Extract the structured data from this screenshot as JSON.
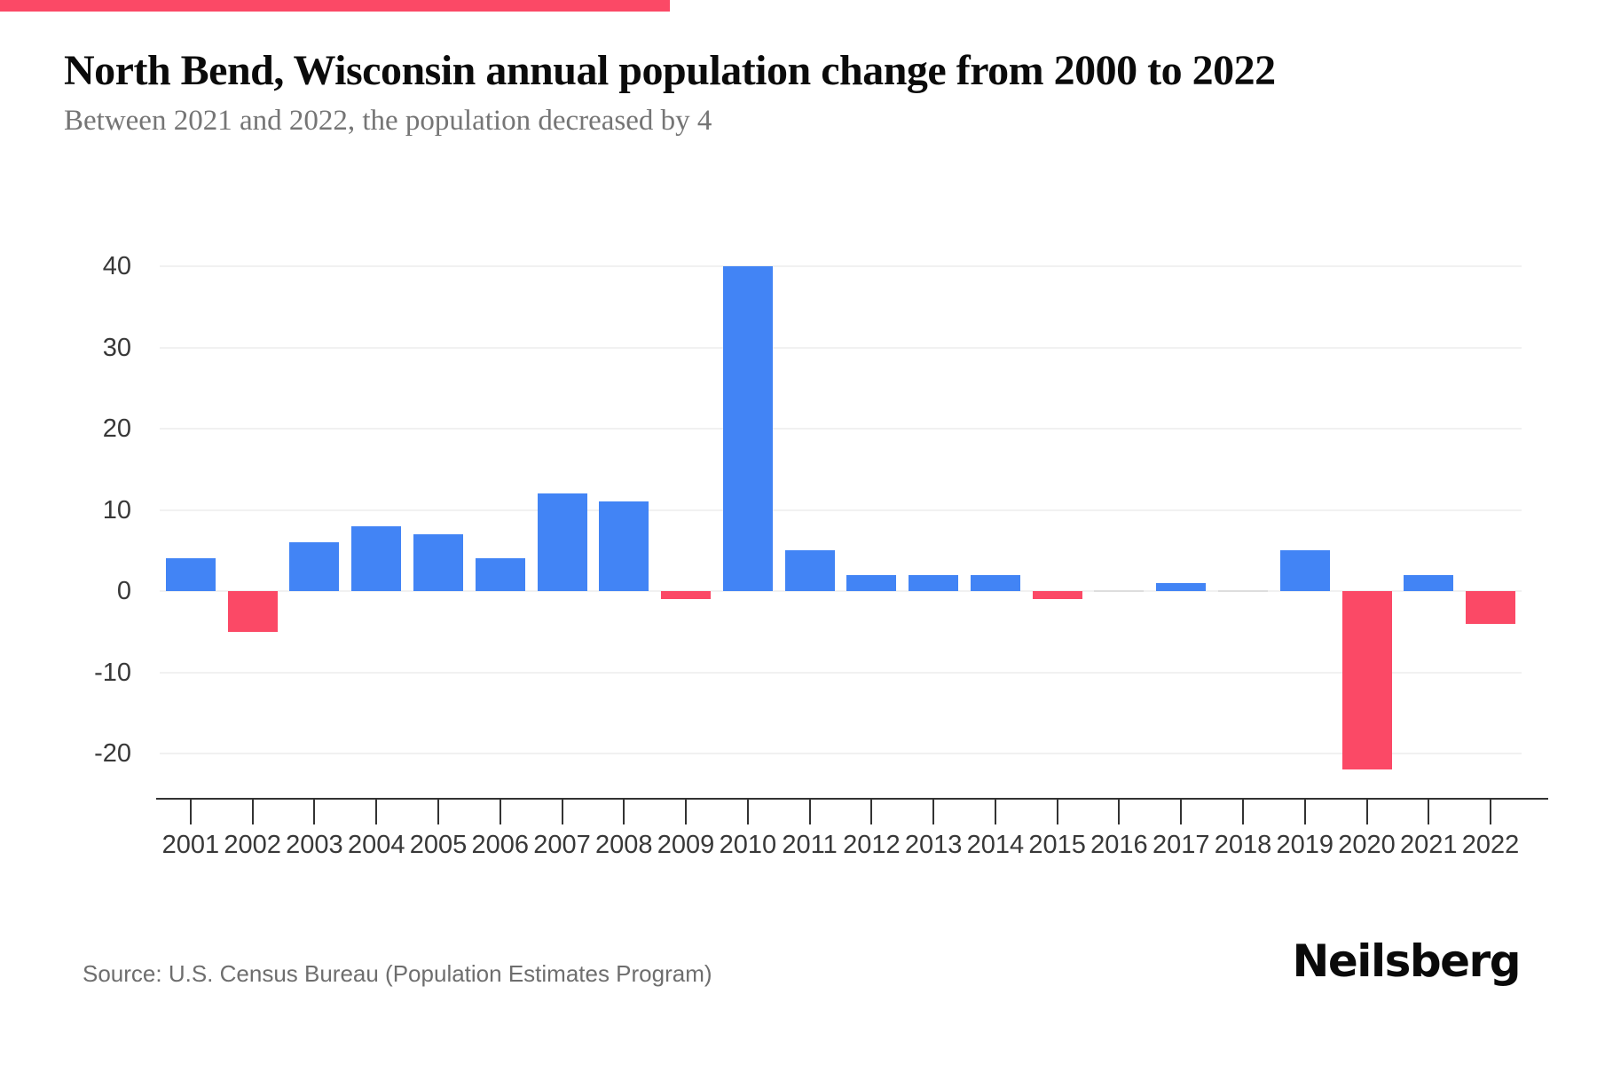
{
  "page": {
    "source": "Source: U.S. Census Bureau (Population Estimates Program)",
    "brand_logo": "Neilsberg"
  },
  "chart_data": {
    "type": "bar",
    "title": "North Bend, Wisconsin annual population change from 2000 to 2022",
    "subtitle": "Between 2021 and 2022, the population decreased by 4",
    "categories": [
      "2001",
      "2002",
      "2003",
      "2004",
      "2005",
      "2006",
      "2007",
      "2008",
      "2009",
      "2010",
      "2011",
      "2012",
      "2013",
      "2014",
      "2015",
      "2016",
      "2017",
      "2018",
      "2019",
      "2020",
      "2021",
      "2022"
    ],
    "values": [
      4,
      -5,
      6,
      8,
      7,
      4,
      12,
      11,
      -1,
      40,
      5,
      2,
      2,
      2,
      -1,
      0,
      1,
      0,
      5,
      -22,
      2,
      -4
    ],
    "xlabel": "",
    "ylabel": "",
    "yticks": [
      40,
      30,
      20,
      10,
      0,
      -10,
      -20
    ],
    "ylim": [
      -25,
      44
    ],
    "grid": true,
    "legend_position": "none",
    "colors": {
      "positive": "#4284F5",
      "negative": "#FB4966",
      "zero_bar": "#DDDDDD",
      "gridline": "#F1F1F1",
      "axis": "#333333",
      "tick_label": "#383838",
      "accent_bar": "#FB4966"
    }
  }
}
